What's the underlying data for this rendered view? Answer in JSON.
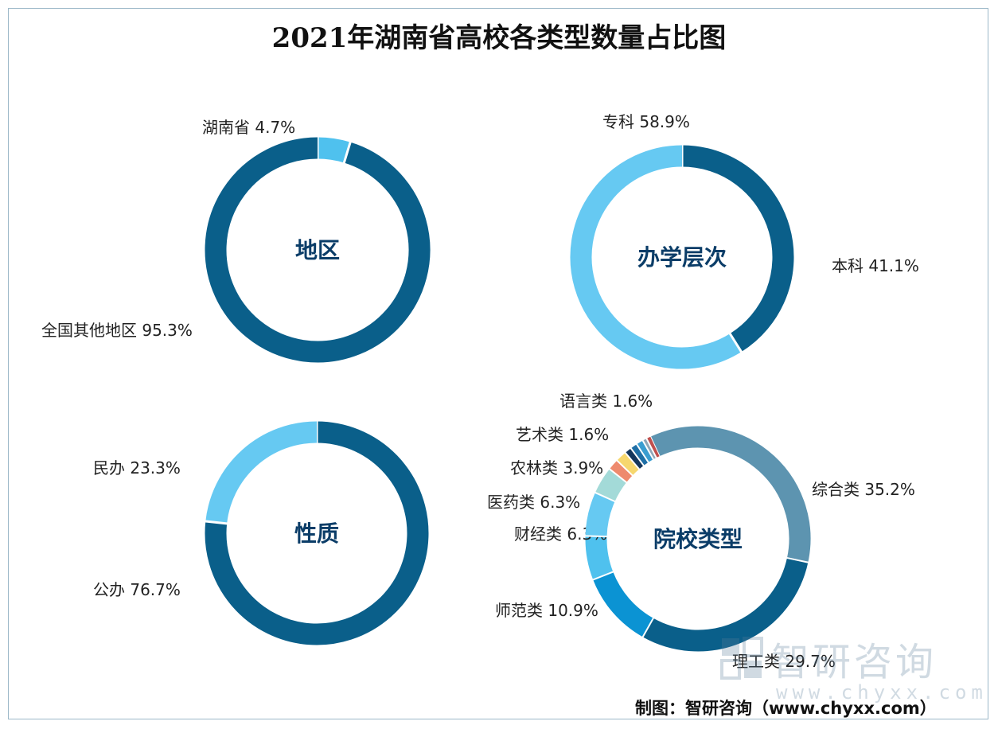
{
  "title": "2021年湖南省高校各类型数量占比图",
  "watermark": {
    "name": "智研咨询",
    "url": "www.chyxx.com"
  },
  "credit": "制图：智研咨询（www.chyxx.com）",
  "colors": {
    "dark_blue": "#0a5f8a",
    "light_blue": "#66c9f2",
    "steel_blue": "#5d94b0",
    "mid_blue": "#0b93d3",
    "sky_blue": "#4fc1ee",
    "mint": "#a3dad8",
    "salmon": "#ee8a6d",
    "yellow": "#f6d76e",
    "navy": "#14365c"
  },
  "chart_data": [
    {
      "type": "pie",
      "donut": true,
      "center_label": "地区",
      "slices": [
        {
          "label": "湖南省",
          "value": 4.7,
          "display": "湖南省 4.7%",
          "color": "#4fc1ee"
        },
        {
          "label": "全国其他地区",
          "value": 95.3,
          "display": "全国其他地区 95.3%",
          "color": "#0a5f8a"
        }
      ]
    },
    {
      "type": "pie",
      "donut": true,
      "center_label": "办学层次",
      "slices": [
        {
          "label": "本科",
          "value": 41.1,
          "display": "本科 41.1%",
          "color": "#0a5f8a"
        },
        {
          "label": "专科",
          "value": 58.9,
          "display": "专科 58.9%",
          "color": "#66c9f2"
        }
      ]
    },
    {
      "type": "pie",
      "donut": true,
      "center_label": "性质",
      "slices": [
        {
          "label": "公办",
          "value": 76.7,
          "display": "公办 76.7%",
          "color": "#0a5f8a"
        },
        {
          "label": "民办",
          "value": 23.3,
          "display": "民办 23.3%",
          "color": "#66c9f2"
        }
      ]
    },
    {
      "type": "pie",
      "donut": true,
      "center_label": "院校类型",
      "slices": [
        {
          "label": "综合类",
          "value": 35.2,
          "display": "综合类 35.2%",
          "color": "#5d94b0"
        },
        {
          "label": "理工类",
          "value": 29.7,
          "display": "理工类 29.7%",
          "color": "#0a5f8a"
        },
        {
          "label": "师范类",
          "value": 10.9,
          "display": "师范类 10.9%",
          "color": "#0b93d3"
        },
        {
          "label": "财经类",
          "value": 6.3,
          "display": "财经类 6.3%",
          "color": "#4fc1ee"
        },
        {
          "label": "医药类",
          "value": 6.3,
          "display": "医药类 6.3%",
          "color": "#66c9f2"
        },
        {
          "label": "农林类",
          "value": 3.9,
          "display": "农林类 3.9%",
          "color": "#a3dad8"
        },
        {
          "label": "艺术类",
          "value": 1.6,
          "display": "艺术类 1.6%",
          "color": "#ee8a6d"
        },
        {
          "label": "语言类",
          "value": 1.6,
          "display": "语言类 1.6%",
          "color": "#f6d76e"
        },
        {
          "label": "",
          "value": 1.0,
          "display": "",
          "color": "#14365c"
        },
        {
          "label": "",
          "value": 1.0,
          "display": "",
          "color": "#1f6fa6"
        },
        {
          "label": "",
          "value": 1.0,
          "display": "",
          "color": "#3a9dd0"
        },
        {
          "label": "",
          "value": 0.6,
          "display": "",
          "color": "#8fa7b8"
        },
        {
          "label": "",
          "value": 0.6,
          "display": "",
          "color": "#c0504d"
        }
      ]
    }
  ]
}
